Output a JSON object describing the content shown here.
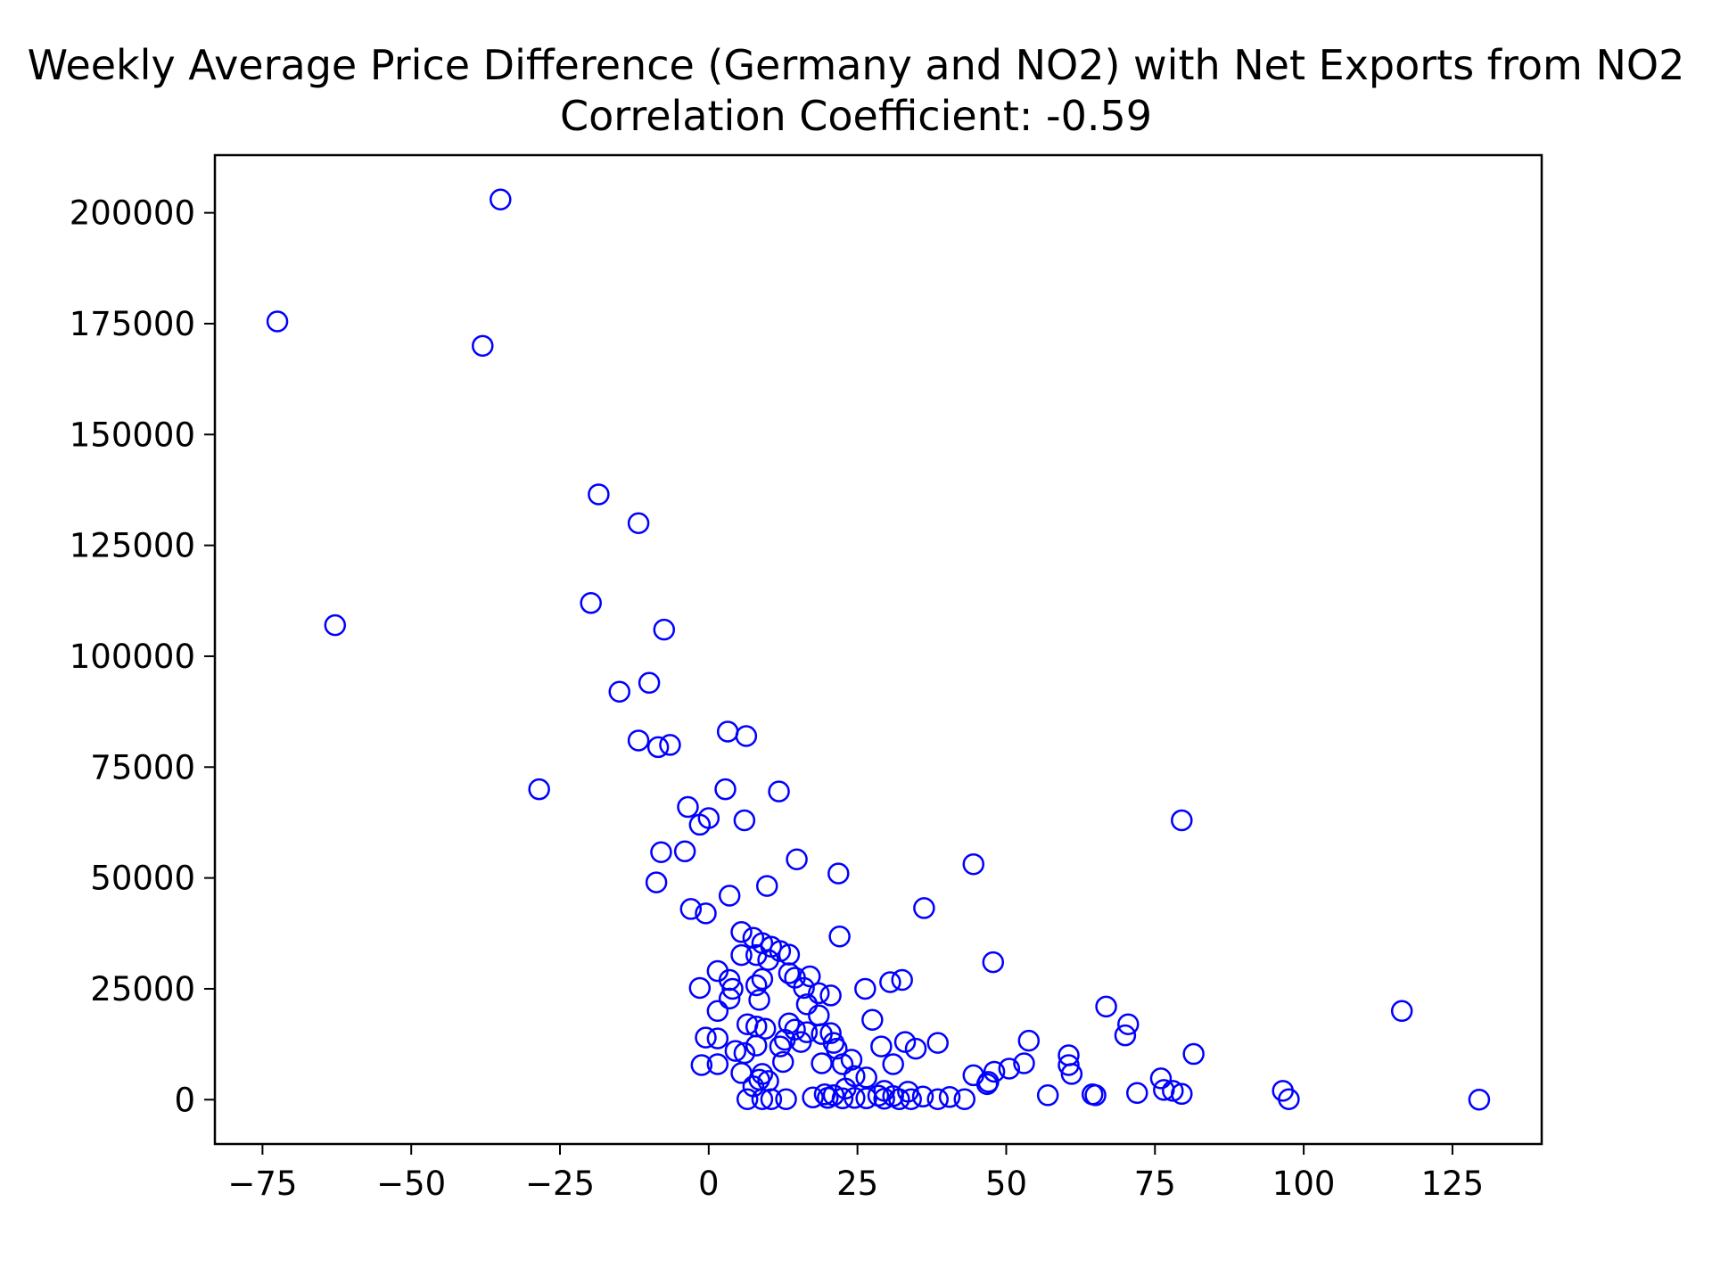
{
  "chart_data": {
    "type": "scatter",
    "title": "Weekly Average Price Difference (Germany and NO2) with Net Exports from NO2",
    "subtitle": "Correlation Coefficient: -0.59",
    "xlabel": "",
    "ylabel": "",
    "xlim": [
      -83,
      140
    ],
    "ylim": [
      -10000,
      213000
    ],
    "xticks": [
      -75,
      -50,
      -25,
      0,
      25,
      50,
      75,
      100,
      125
    ],
    "xtick_labels": [
      "−75",
      "−50",
      "−25",
      "0",
      "25",
      "50",
      "75",
      "100",
      "125"
    ],
    "yticks": [
      0,
      25000,
      50000,
      75000,
      100000,
      125000,
      150000,
      175000,
      200000
    ],
    "ytick_labels": [
      "0",
      "25000",
      "50000",
      "75000",
      "100000",
      "125000",
      "150000",
      "175000",
      "200000"
    ],
    "grid": false,
    "marker": "open-circle",
    "color": "#0000ff",
    "points": [
      {
        "x": -72.5,
        "y": 175500
      },
      {
        "x": -35,
        "y": 203000
      },
      {
        "x": -38,
        "y": 170000
      },
      {
        "x": -62.8,
        "y": 107000
      },
      {
        "x": -28.5,
        "y": 70000
      },
      {
        "x": -18.5,
        "y": 136500
      },
      {
        "x": -11.8,
        "y": 130000
      },
      {
        "x": -19.8,
        "y": 112000
      },
      {
        "x": -7.5,
        "y": 106000
      },
      {
        "x": -15,
        "y": 92000
      },
      {
        "x": -10,
        "y": 94000
      },
      {
        "x": -11.8,
        "y": 81000
      },
      {
        "x": -8.5,
        "y": 79500
      },
      {
        "x": -6.5,
        "y": 80000
      },
      {
        "x": 3.2,
        "y": 83000
      },
      {
        "x": 6.3,
        "y": 82000
      },
      {
        "x": 2.8,
        "y": 70000
      },
      {
        "x": 11.8,
        "y": 69500
      },
      {
        "x": -3.5,
        "y": 66000
      },
      {
        "x": -1.5,
        "y": 62000
      },
      {
        "x": 0,
        "y": 63500
      },
      {
        "x": 6,
        "y": 63000
      },
      {
        "x": -8,
        "y": 55800
      },
      {
        "x": -4,
        "y": 56000
      },
      {
        "x": 14.8,
        "y": 54200
      },
      {
        "x": 21.8,
        "y": 51000
      },
      {
        "x": -8.8,
        "y": 49000
      },
      {
        "x": 9.8,
        "y": 48200
      },
      {
        "x": 3.5,
        "y": 46000
      },
      {
        "x": -3,
        "y": 43000
      },
      {
        "x": -0.5,
        "y": 42000
      },
      {
        "x": 36.2,
        "y": 43200
      },
      {
        "x": 44.5,
        "y": 53100
      },
      {
        "x": 79.5,
        "y": 63000
      },
      {
        "x": 22,
        "y": 36800
      },
      {
        "x": 5.5,
        "y": 37800
      },
      {
        "x": 7.5,
        "y": 36500
      },
      {
        "x": 9,
        "y": 35300
      },
      {
        "x": 10.5,
        "y": 34500
      },
      {
        "x": 12,
        "y": 33500
      },
      {
        "x": 13.5,
        "y": 32700
      },
      {
        "x": 5.5,
        "y": 32600
      },
      {
        "x": 8,
        "y": 32600
      },
      {
        "x": 10,
        "y": 31500
      },
      {
        "x": 47.8,
        "y": 31000
      },
      {
        "x": 1.5,
        "y": 29000
      },
      {
        "x": 13.5,
        "y": 28500
      },
      {
        "x": 17,
        "y": 27800
      },
      {
        "x": 14.5,
        "y": 27500
      },
      {
        "x": 3.5,
        "y": 27000
      },
      {
        "x": 9,
        "y": 27200
      },
      {
        "x": 30.5,
        "y": 26500
      },
      {
        "x": 32.5,
        "y": 27000
      },
      {
        "x": 26.3,
        "y": 25000
      },
      {
        "x": -1.5,
        "y": 25200
      },
      {
        "x": 4,
        "y": 25000
      },
      {
        "x": 8,
        "y": 25800
      },
      {
        "x": 16,
        "y": 25200
      },
      {
        "x": 18.5,
        "y": 24000
      },
      {
        "x": 20.5,
        "y": 23500
      },
      {
        "x": 3.5,
        "y": 22800
      },
      {
        "x": 8.5,
        "y": 22500
      },
      {
        "x": 16.5,
        "y": 21500
      },
      {
        "x": 66.8,
        "y": 21000
      },
      {
        "x": 116.5,
        "y": 20000
      },
      {
        "x": 1.5,
        "y": 20000
      },
      {
        "x": 18.5,
        "y": 19000
      },
      {
        "x": 27.5,
        "y": 18000
      },
      {
        "x": 70.5,
        "y": 17000
      },
      {
        "x": 6.5,
        "y": 17000
      },
      {
        "x": 8,
        "y": 16500
      },
      {
        "x": 9.5,
        "y": 16000
      },
      {
        "x": 13.5,
        "y": 17200
      },
      {
        "x": 14.5,
        "y": 15800
      },
      {
        "x": 16.5,
        "y": 15200
      },
      {
        "x": 19,
        "y": 14800
      },
      {
        "x": 20.5,
        "y": 15000
      },
      {
        "x": 70,
        "y": 14500
      },
      {
        "x": -0.5,
        "y": 14000
      },
      {
        "x": 1.5,
        "y": 13800
      },
      {
        "x": 12.8,
        "y": 13500
      },
      {
        "x": 15.5,
        "y": 13000
      },
      {
        "x": 21,
        "y": 12800
      },
      {
        "x": 33,
        "y": 13000
      },
      {
        "x": 38.5,
        "y": 12800
      },
      {
        "x": 53.8,
        "y": 13300
      },
      {
        "x": 8,
        "y": 12200
      },
      {
        "x": 12,
        "y": 12000
      },
      {
        "x": 21.5,
        "y": 11500
      },
      {
        "x": 29,
        "y": 12000
      },
      {
        "x": 34.8,
        "y": 11500
      },
      {
        "x": 4.5,
        "y": 11000
      },
      {
        "x": 6,
        "y": 10500
      },
      {
        "x": 60.5,
        "y": 10000
      },
      {
        "x": 81.5,
        "y": 10300
      },
      {
        "x": 24,
        "y": 9000
      },
      {
        "x": 12.5,
        "y": 8500
      },
      {
        "x": 19,
        "y": 8200
      },
      {
        "x": 22.5,
        "y": 8000
      },
      {
        "x": 31,
        "y": 8000
      },
      {
        "x": 53,
        "y": 8200
      },
      {
        "x": 60.5,
        "y": 7800
      },
      {
        "x": -1.2,
        "y": 7800
      },
      {
        "x": 1.5,
        "y": 8000
      },
      {
        "x": 50.5,
        "y": 7000
      },
      {
        "x": 48,
        "y": 6300
      },
      {
        "x": 5.5,
        "y": 6000
      },
      {
        "x": 9,
        "y": 5800
      },
      {
        "x": 61,
        "y": 5800
      },
      {
        "x": 44.5,
        "y": 5500
      },
      {
        "x": 24.5,
        "y": 5300
      },
      {
        "x": 26.5,
        "y": 5000
      },
      {
        "x": 76,
        "y": 4800
      },
      {
        "x": 8.5,
        "y": 4500
      },
      {
        "x": 10,
        "y": 4200
      },
      {
        "x": 47,
        "y": 4000
      },
      {
        "x": 46.8,
        "y": 3500
      },
      {
        "x": 7.5,
        "y": 3000
      },
      {
        "x": 23,
        "y": 2500
      },
      {
        "x": 76.5,
        "y": 2200
      },
      {
        "x": 78,
        "y": 2000
      },
      {
        "x": 96.5,
        "y": 2000
      },
      {
        "x": 29.5,
        "y": 2000
      },
      {
        "x": 33.5,
        "y": 1800
      },
      {
        "x": 72,
        "y": 1500
      },
      {
        "x": 79.5,
        "y": 1300
      },
      {
        "x": 64.5,
        "y": 1200
      },
      {
        "x": 65,
        "y": 1000
      },
      {
        "x": 57,
        "y": 1000
      },
      {
        "x": 19.5,
        "y": 1200
      },
      {
        "x": 21,
        "y": 1000
      },
      {
        "x": 28.5,
        "y": 900
      },
      {
        "x": 31,
        "y": 800
      },
      {
        "x": 36,
        "y": 700
      },
      {
        "x": 40.5,
        "y": 600
      },
      {
        "x": 17.5,
        "y": 500
      },
      {
        "x": 20,
        "y": 400
      },
      {
        "x": 22.5,
        "y": 300
      },
      {
        "x": 24.5,
        "y": 400
      },
      {
        "x": 26.5,
        "y": 300
      },
      {
        "x": 29.5,
        "y": 200
      },
      {
        "x": 32,
        "y": 100
      },
      {
        "x": 34,
        "y": 100
      },
      {
        "x": 38.5,
        "y": 100
      },
      {
        "x": 43,
        "y": 100
      },
      {
        "x": 6.5,
        "y": 100
      },
      {
        "x": 9,
        "y": 100
      },
      {
        "x": 10.5,
        "y": 100
      },
      {
        "x": 13,
        "y": 100
      },
      {
        "x": 97.5,
        "y": 100
      },
      {
        "x": 129.5,
        "y": 0
      }
    ]
  }
}
